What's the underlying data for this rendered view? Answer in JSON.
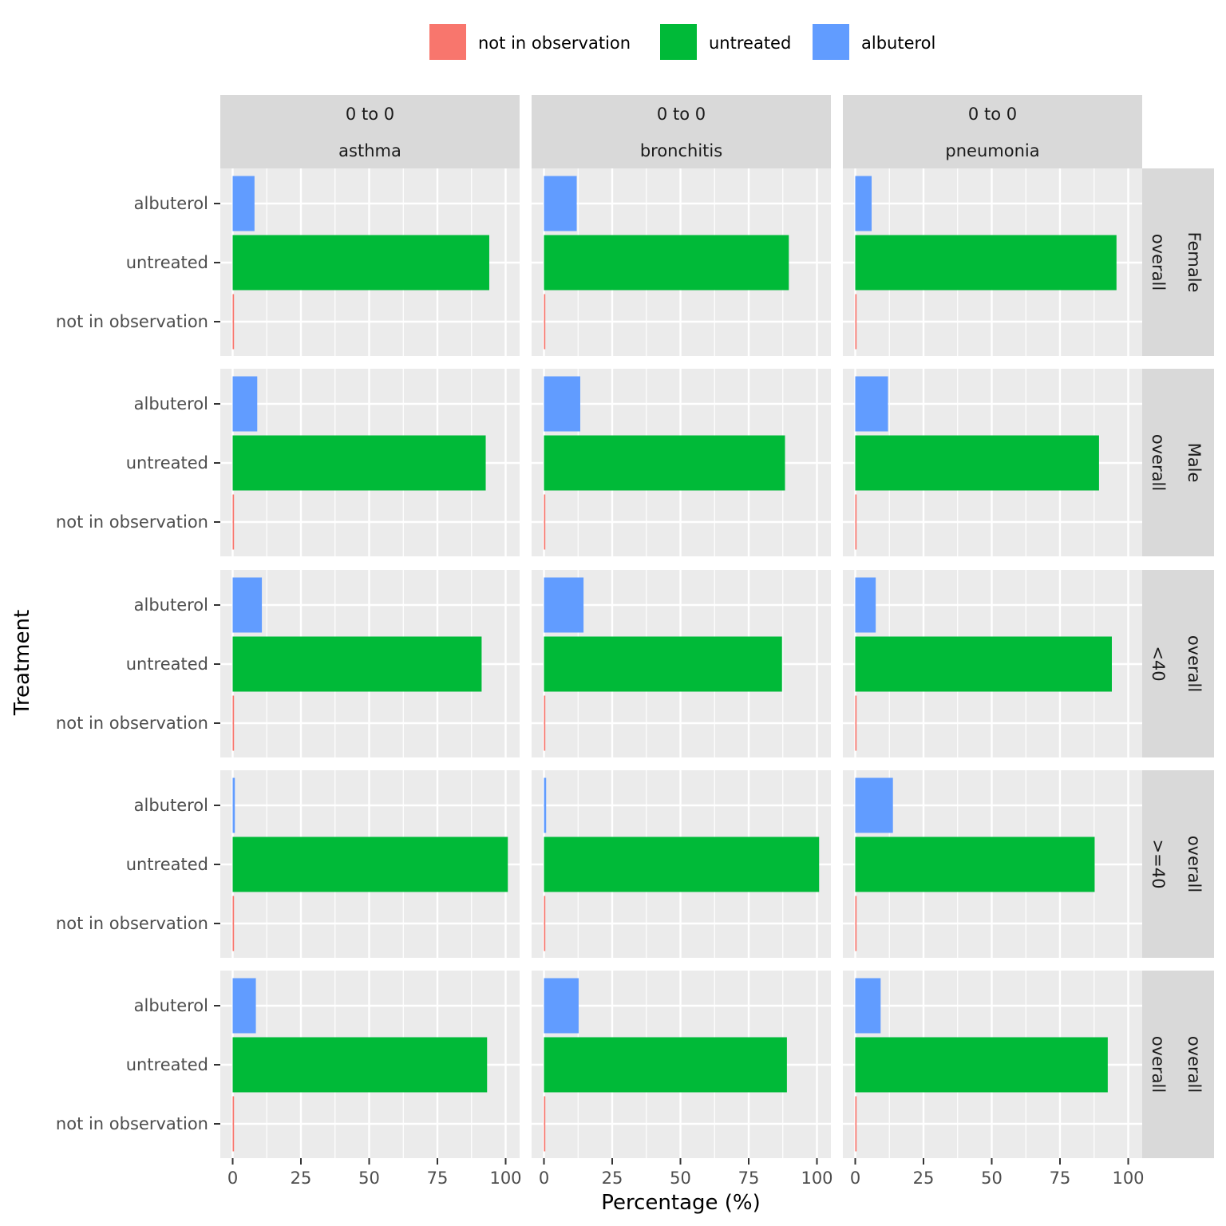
{
  "chart_data": {
    "type": "bar",
    "orientation": "horizontal",
    "xlabel": "Percentage (%)",
    "ylabel": "Treatment",
    "xlim": [
      0,
      100
    ],
    "x_ticks": [
      0,
      25,
      50,
      75,
      100
    ],
    "categories": [
      "not in observation",
      "untreated",
      "albuterol"
    ],
    "legend": {
      "position": "top",
      "entries": [
        {
          "label": "not in observation",
          "color": "#F8766D"
        },
        {
          "label": "untreated",
          "color": "#00BA38"
        },
        {
          "label": "albuterol",
          "color": "#619CFF"
        }
      ]
    },
    "columns": [
      {
        "top": "0 to 0",
        "bottom": "asthma"
      },
      {
        "top": "0 to 0",
        "bottom": "bronchitis"
      },
      {
        "top": "0 to 0",
        "bottom": "pneumonia"
      }
    ],
    "rows": [
      {
        "line1": "Female",
        "line2": "overall"
      },
      {
        "line1": "Male",
        "line2": "overall"
      },
      {
        "line1": "overall",
        "line2": "<40"
      },
      {
        "line1": "overall",
        "line2": ">=40"
      },
      {
        "line1": "overall",
        "line2": "overall"
      }
    ],
    "values": [
      [
        {
          "not in observation": 0.5,
          "untreated": 94,
          "albuterol": 8
        },
        {
          "not in observation": 0.5,
          "untreated": 89.7,
          "albuterol": 12
        },
        {
          "not in observation": 0.5,
          "untreated": 95.7,
          "albuterol": 6
        }
      ],
      [
        {
          "not in observation": 0.5,
          "untreated": 92.7,
          "albuterol": 9
        },
        {
          "not in observation": 0.5,
          "untreated": 88.3,
          "albuterol": 13.3
        },
        {
          "not in observation": 0.5,
          "untreated": 89.3,
          "albuterol": 12
        }
      ],
      [
        {
          "not in observation": 0.5,
          "untreated": 91.2,
          "albuterol": 10.7
        },
        {
          "not in observation": 0.5,
          "untreated": 87.2,
          "albuterol": 14.5
        },
        {
          "not in observation": 0.5,
          "untreated": 94,
          "albuterol": 7.5
        }
      ],
      [
        {
          "not in observation": 0.5,
          "untreated": 100.8,
          "albuterol": 0.8
        },
        {
          "not in observation": 0.5,
          "untreated": 100.8,
          "albuterol": 0.8
        },
        {
          "not in observation": 0.5,
          "untreated": 87.7,
          "albuterol": 13.8
        }
      ],
      [
        {
          "not in observation": 0.5,
          "untreated": 93.2,
          "albuterol": 8.5
        },
        {
          "not in observation": 0.5,
          "untreated": 89,
          "albuterol": 12.7
        },
        {
          "not in observation": 0.5,
          "untreated": 92.5,
          "albuterol": 9.3
        }
      ]
    ]
  }
}
